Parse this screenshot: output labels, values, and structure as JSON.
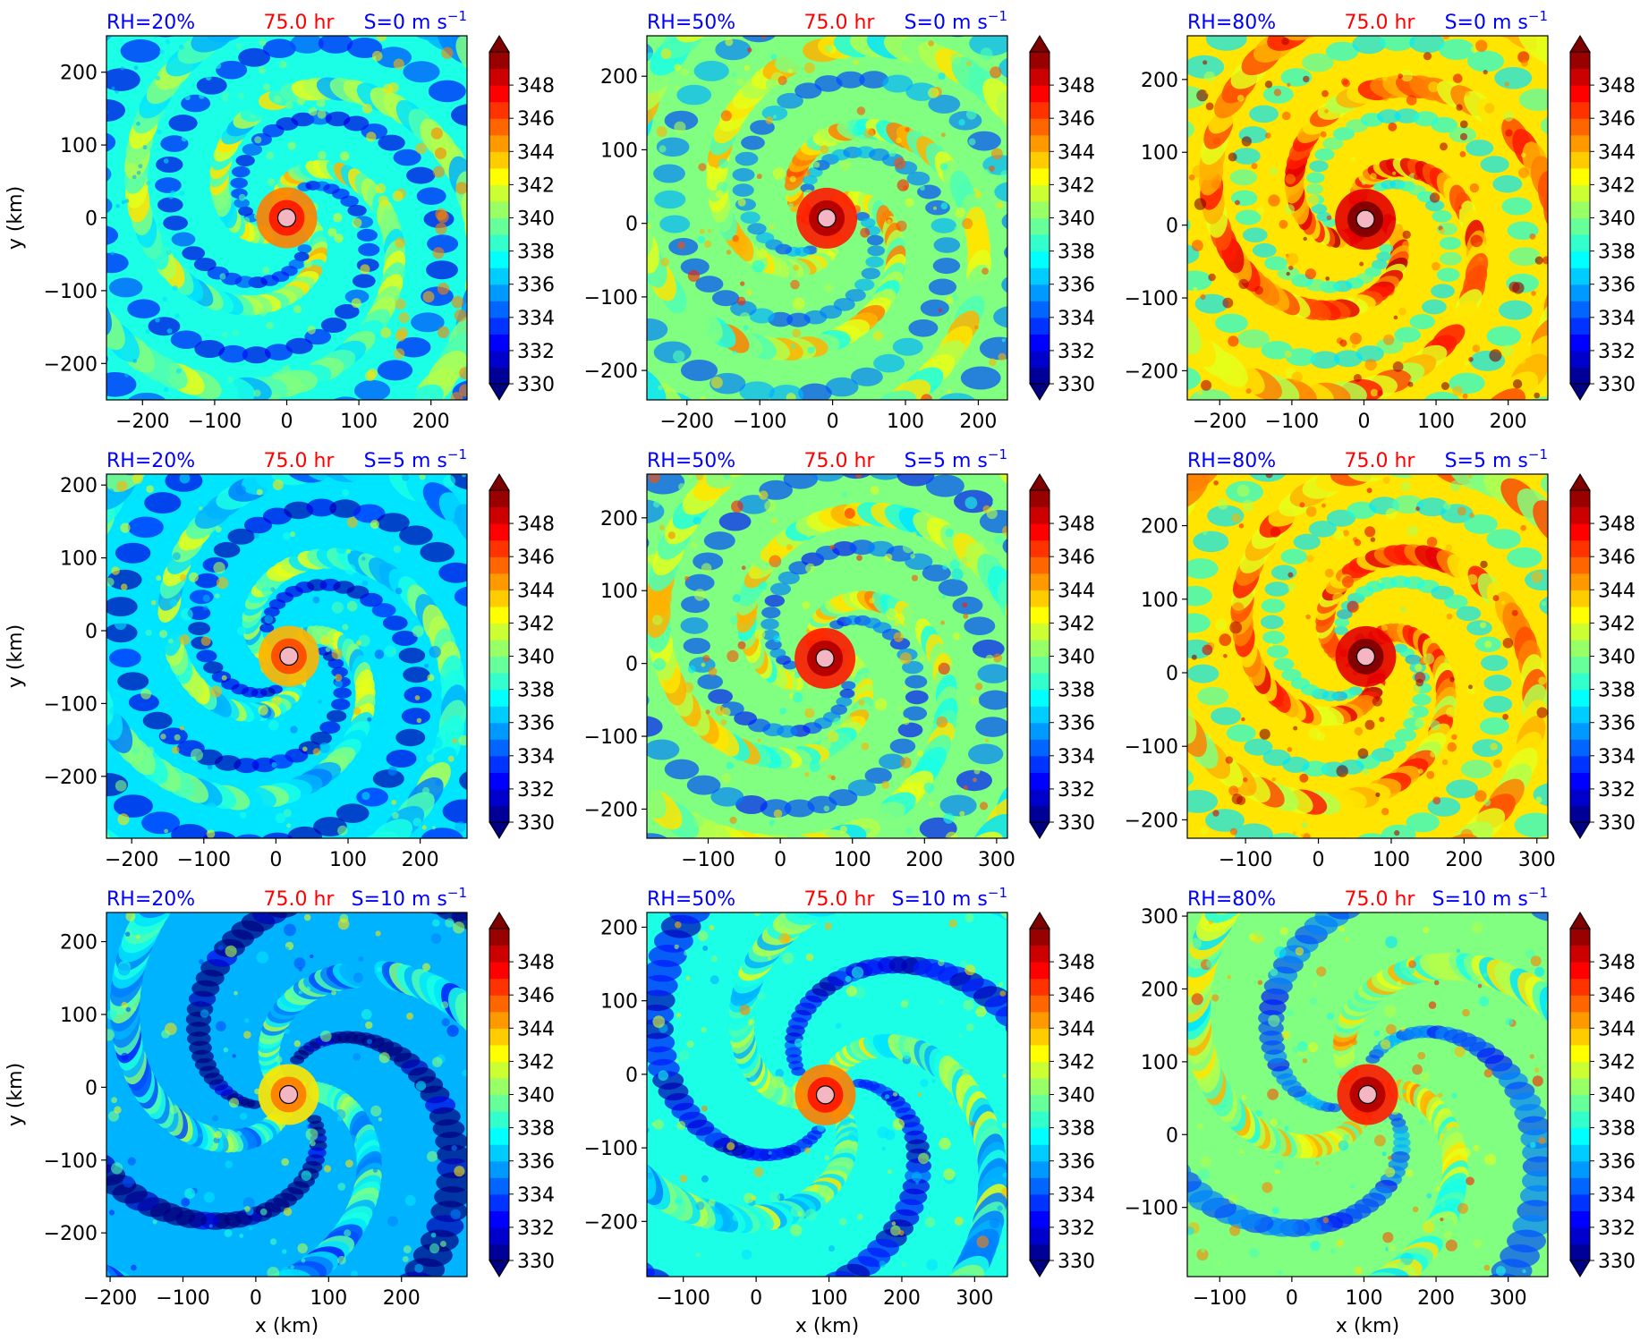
{
  "colors": {
    "label_blue": "#0000ff",
    "label_red": "#ff0000",
    "marker_fill": "#f4b6c2",
    "colormap": "jet"
  },
  "chart_data": {
    "type": "heatmap",
    "variable_units": "",
    "time_label": "75.0 hr",
    "colorbar": {
      "ticks": [
        "348",
        "346",
        "344",
        "342",
        "340",
        "338",
        "336",
        "334",
        "332",
        "330"
      ],
      "vmin": 330,
      "vmax": 350,
      "levels": 21,
      "extend": "both",
      "colormap": "jet"
    },
    "xlabel": "x (km)",
    "ylabel": "y (km)",
    "panels": [
      {
        "rh": "RH=20%",
        "shear": "S=0 m s",
        "shear_exp": "−1",
        "time": "75.0 hr",
        "xlim": [
          -250,
          250
        ],
        "ylim": [
          -250,
          250
        ],
        "center": [
          0,
          0
        ],
        "intensity": 0.52,
        "rotation": 0.9,
        "xticks": [
          "−200",
          "−100",
          "0",
          "100",
          "200"
        ],
        "xtick_vals": [
          -200,
          -100,
          0,
          100,
          200
        ],
        "yticks": [
          "200",
          "100",
          "0",
          "−100",
          "−200"
        ],
        "ytick_vals": [
          200,
          100,
          0,
          -100,
          -200
        ]
      },
      {
        "rh": "RH=50%",
        "shear": "S=0 m s",
        "shear_exp": "−1",
        "time": "75.0 hr",
        "xlim": [
          -255,
          240
        ],
        "ylim": [
          -240,
          255
        ],
        "center": [
          -8,
          7
        ],
        "intensity": 0.62,
        "rotation": 0.9,
        "xticks": [
          "−200",
          "−100",
          "0",
          "100",
          "200"
        ],
        "xtick_vals": [
          -200,
          -100,
          0,
          100,
          200
        ],
        "yticks": [
          "200",
          "100",
          "0",
          "−100",
          "−200"
        ],
        "ytick_vals": [
          200,
          100,
          0,
          -100,
          -200
        ]
      },
      {
        "rh": "RH=80%",
        "shear": "S=0 m s",
        "shear_exp": "−1",
        "time": "75.0 hr",
        "xlim": [
          -245,
          255
        ],
        "ylim": [
          -240,
          260
        ],
        "center": [
          2,
          8
        ],
        "intensity": 0.78,
        "rotation": 0.9,
        "xticks": [
          "−200",
          "−100",
          "0",
          "100",
          "200"
        ],
        "xtick_vals": [
          -200,
          -100,
          0,
          100,
          200
        ],
        "yticks": [
          "200",
          "100",
          "0",
          "−100",
          "−200"
        ],
        "ytick_vals": [
          200,
          100,
          0,
          -100,
          -200
        ]
      },
      {
        "rh": "RH=20%",
        "shear": "S=5 m s",
        "shear_exp": "−1",
        "time": "75.0 hr",
        "xlim": [
          -235,
          265
        ],
        "ylim": [
          -285,
          215
        ],
        "center": [
          18,
          -35
        ],
        "intensity": 0.47,
        "rotation": 0.85,
        "xticks": [
          "−200",
          "−100",
          "0",
          "100",
          "200"
        ],
        "xtick_vals": [
          -200,
          -100,
          0,
          100,
          200
        ],
        "yticks": [
          "200",
          "100",
          "0",
          "−100",
          "−200"
        ],
        "ytick_vals": [
          200,
          100,
          0,
          -100,
          -200
        ]
      },
      {
        "rh": "RH=50%",
        "shear": "S=5 m s",
        "shear_exp": "−1",
        "time": "75.0 hr",
        "xlim": [
          -185,
          315
        ],
        "ylim": [
          -240,
          260
        ],
        "center": [
          62,
          7
        ],
        "intensity": 0.6,
        "rotation": 0.85,
        "xticks": [
          "−100",
          "0",
          "100",
          "200",
          "300"
        ],
        "xtick_vals": [
          -100,
          0,
          100,
          200,
          300
        ],
        "yticks": [
          "200",
          "100",
          "0",
          "−100",
          "−200"
        ],
        "ytick_vals": [
          200,
          100,
          0,
          -100,
          -200
        ]
      },
      {
        "rh": "RH=80%",
        "shear": "S=5 m s",
        "shear_exp": "−1",
        "time": "75.0 hr",
        "xlim": [
          -180,
          315
        ],
        "ylim": [
          -225,
          270
        ],
        "center": [
          65,
          22
        ],
        "intensity": 0.76,
        "rotation": 0.85,
        "xticks": [
          "−100",
          "0",
          "100",
          "200",
          "300"
        ],
        "xtick_vals": [
          -100,
          0,
          100,
          200,
          300
        ],
        "yticks": [
          "200",
          "100",
          "0",
          "−100",
          "−200"
        ],
        "ytick_vals": [
          200,
          100,
          0,
          -100,
          -200
        ]
      },
      {
        "rh": "RH=20%",
        "shear": "S=10 m s",
        "shear_exp": "−1",
        "time": "75.0 hr",
        "xlim": [
          -205,
          290
        ],
        "ylim": [
          -260,
          240
        ],
        "center": [
          45,
          -10
        ],
        "intensity": 0.4,
        "rotation": 0.4,
        "xticks": [
          "−200",
          "−100",
          "0",
          "100",
          "200"
        ],
        "xtick_vals": [
          -200,
          -100,
          0,
          100,
          200
        ],
        "yticks": [
          "200",
          "100",
          "0",
          "−100",
          "−200"
        ],
        "ytick_vals": [
          200,
          100,
          0,
          -100,
          -200
        ]
      },
      {
        "rh": "RH=50%",
        "shear": "S=10 m s",
        "shear_exp": "−1",
        "time": "75.0 hr",
        "xlim": [
          -150,
          345
        ],
        "ylim": [
          -275,
          220
        ],
        "center": [
          95,
          -28
        ],
        "intensity": 0.5,
        "rotation": 0.4,
        "xticks": [
          "−100",
          "0",
          "100",
          "200",
          "300"
        ],
        "xtick_vals": [
          -100,
          0,
          100,
          200,
          300
        ],
        "yticks": [
          "200",
          "100",
          "0",
          "−100",
          "−200"
        ],
        "ytick_vals": [
          200,
          100,
          0,
          -100,
          -200
        ]
      },
      {
        "rh": "RH=80%",
        "shear": "S=10 m s",
        "shear_exp": "−1",
        "time": "75.0 hr",
        "xlim": [
          -145,
          355
        ],
        "ylim": [
          -195,
          305
        ],
        "center": [
          105,
          55
        ],
        "intensity": 0.6,
        "rotation": 0.4,
        "xticks": [
          "−100",
          "0",
          "100",
          "200",
          "300"
        ],
        "xtick_vals": [
          -100,
          0,
          100,
          200,
          300
        ],
        "yticks": [
          "300",
          "200",
          "100",
          "0",
          "−100"
        ],
        "ytick_vals": [
          300,
          200,
          100,
          0,
          -100
        ]
      }
    ]
  }
}
